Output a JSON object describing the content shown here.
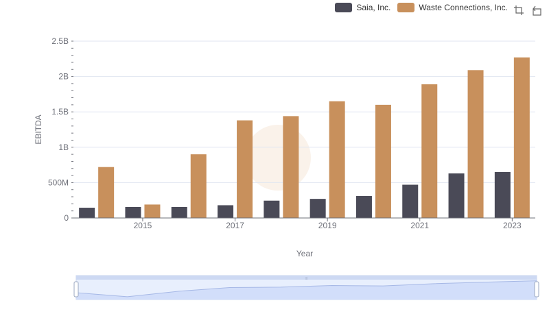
{
  "legend": {
    "items": [
      {
        "label": "Saia, Inc.",
        "color": "#4a4a57"
      },
      {
        "label": "Waste Connections, Inc.",
        "color": "#c8905c"
      }
    ]
  },
  "toolbox": {
    "icons": [
      "zoom-icon",
      "restore-icon"
    ]
  },
  "chart_data": {
    "type": "bar",
    "categories": [
      "2014",
      "2015",
      "2016",
      "2017",
      "2018",
      "2019",
      "2020",
      "2021",
      "2022",
      "2023"
    ],
    "x_tick_labels": [
      "2015",
      "2017",
      "2019",
      "2021",
      "2023"
    ],
    "xlabel": "Year",
    "ylabel": "EBITDA",
    "ylim": [
      0,
      2500000000
    ],
    "y_tick_labels": [
      "0",
      "500M",
      "1B",
      "1.5B",
      "2B",
      "2.5B"
    ],
    "grid": true,
    "legend_position": "top-right",
    "series": [
      {
        "name": "Saia, Inc.",
        "color": "#4a4a57",
        "values": [
          145000000,
          155000000,
          155000000,
          180000000,
          245000000,
          270000000,
          310000000,
          470000000,
          630000000,
          650000000
        ]
      },
      {
        "name": "Waste Connections, Inc.",
        "color": "#c8905c",
        "values": [
          720000000,
          190000000,
          900000000,
          1380000000,
          1440000000,
          1650000000,
          1600000000,
          1890000000,
          2090000000,
          2270000000
        ]
      }
    ]
  }
}
